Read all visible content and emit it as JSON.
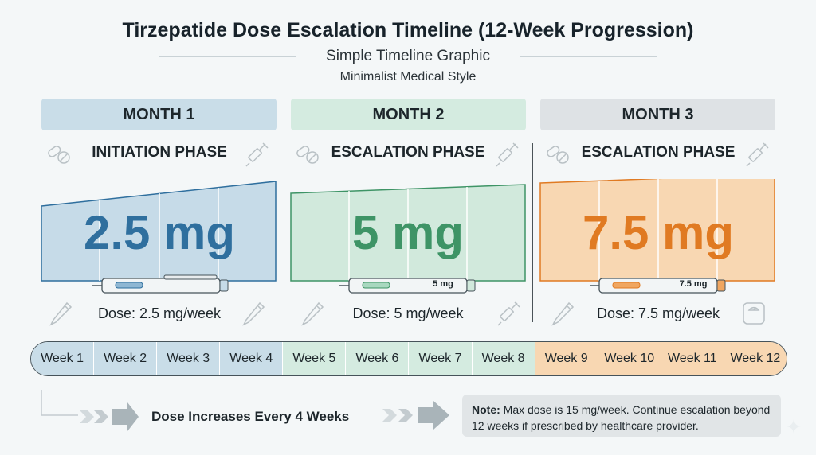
{
  "header": {
    "title": "Tirzepatide Dose Escalation Timeline (12-Week Progression)",
    "subtitle": "Simple Timeline Graphic",
    "subtitle2": "Minimalist Medical Style"
  },
  "months": [
    {
      "header": "MONTH 1",
      "phase": "INITIATION PHASE",
      "dose": "2.5 mg",
      "pen_label": "",
      "dose_text": "Dose: 2.5 mg/week",
      "color": "#2f6f9e",
      "fill": "#c6dbe8",
      "header_bg": "#c9dde8"
    },
    {
      "header": "MONTH 2",
      "phase": "ESCALATION PHASE",
      "dose": "5 mg",
      "pen_label": "5 mg",
      "dose_text": "Dose: 5 mg/week",
      "color": "#3e9466",
      "fill": "#d1e9dc",
      "header_bg": "#d4ebe0"
    },
    {
      "header": "MONTH 3",
      "phase": "ESCALATION PHASE",
      "dose": "7.5 mg",
      "pen_label": "7.5 mg",
      "dose_text": "Dose: 7.5 mg/week",
      "color": "#e07a22",
      "fill": "#f8d7b2",
      "header_bg": "#dee2e5"
    }
  ],
  "weeks": [
    "Week 1",
    "Week 2",
    "Week 3",
    "Week 4",
    "Week 5",
    "Week 6",
    "Week 7",
    "Week 8",
    "Week 9",
    "Week 10",
    "Week 11",
    "Week 12"
  ],
  "footer": {
    "increase_text": "Dose Increases Every 4 Weeks",
    "note_label": "Note:",
    "note_text": "Max dose is 15 mg/week. Continue escalation beyond 12 weeks if prescribed by healthcare provider."
  },
  "icons": [
    "pills-icon",
    "syringe-icon",
    "pen-icon",
    "scale-icon"
  ]
}
